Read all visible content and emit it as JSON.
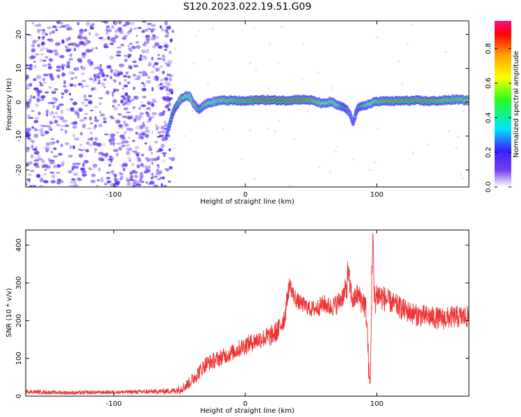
{
  "title": "S120.2023.022.19.51.G09",
  "chart_data": [
    {
      "type": "heatmap",
      "title": "",
      "xlabel": "Height of straight line (km)",
      "ylabel": "Frequency (Hz)",
      "xlim": [
        -167,
        170
      ],
      "ylim": [
        -25,
        24
      ],
      "xticks": [
        -100,
        0,
        100
      ],
      "yticks": [
        -20,
        -10,
        0,
        10,
        20
      ],
      "colorbar": {
        "label": "Normalized spectral amplitude",
        "range": [
          0,
          0.96
        ],
        "ticks": [
          0.0,
          0.2,
          0.4,
          0.6,
          0.8
        ],
        "colors": [
          "#ffffff",
          "#7a3ff0",
          "#3a1fff",
          "#00e5ff",
          "#22ff22",
          "#ffff00",
          "#ff9900",
          "#ff0000",
          "#ff1080"
        ]
      },
      "noise_region": {
        "x_range": [
          -167,
          -55
        ],
        "y_range": [
          -25,
          24
        ],
        "level": 0.15
      },
      "signal_ridge": {
        "x": [
          -60,
          -58,
          -55,
          -52,
          -50,
          -47,
          -45,
          -42,
          -40,
          -37,
          -35,
          -32,
          -30,
          -25,
          -20,
          -10,
          0,
          10,
          20,
          30,
          40,
          50,
          55,
          60,
          65,
          70,
          75,
          78,
          80,
          82,
          85,
          90,
          95,
          100,
          110,
          120,
          130,
          140,
          150,
          160,
          170
        ],
        "frequency": [
          -10,
          -7,
          -3,
          -1,
          0.5,
          1.5,
          2,
          1.5,
          0,
          -1.5,
          -2,
          -1,
          -0.5,
          0,
          0.5,
          0.5,
          0.3,
          0.7,
          0.6,
          0.5,
          0.8,
          0.6,
          0,
          -0.5,
          0.2,
          -1,
          -1.5,
          -2.5,
          -4,
          -6,
          -2,
          -1,
          -0.5,
          0.3,
          0.3,
          0.4,
          0.5,
          0.3,
          0.5,
          0.8,
          0.5
        ],
        "amplitude": [
          0.25,
          0.35,
          0.45,
          0.55,
          0.6,
          0.65,
          0.7,
          0.7,
          0.65,
          0.6,
          0.55,
          0.6,
          0.65,
          0.7,
          0.75,
          0.8,
          0.85,
          0.88,
          0.9,
          0.9,
          0.88,
          0.85,
          0.75,
          0.7,
          0.75,
          0.65,
          0.5,
          0.4,
          0.3,
          0.25,
          0.45,
          0.6,
          0.7,
          0.8,
          0.85,
          0.85,
          0.85,
          0.85,
          0.8,
          0.8,
          0.75
        ]
      }
    },
    {
      "type": "line",
      "title": "",
      "xlabel": "Height of straight line (km)",
      "ylabel": "SNR (10 * v/v)",
      "xlim": [
        -167,
        170
      ],
      "ylim": [
        0,
        440
      ],
      "xticks": [
        -100,
        0,
        100
      ],
      "yticks": [
        0,
        100,
        200,
        300,
        400
      ],
      "series": [
        {
          "color": "#ee3333",
          "x": [
            -167,
            -150,
            -130,
            -110,
            -90,
            -70,
            -55,
            -50,
            -45,
            -40,
            -35,
            -30,
            -20,
            -10,
            0,
            10,
            20,
            25,
            30,
            32,
            34,
            36,
            40,
            45,
            50,
            55,
            60,
            65,
            70,
            73,
            75,
            77,
            78,
            80,
            82,
            85,
            88,
            90,
            92,
            93,
            94,
            95,
            96,
            97,
            98,
            100,
            105,
            110,
            120,
            130,
            140,
            150,
            160,
            170
          ],
          "y": [
            12,
            10,
            9,
            10,
            11,
            12,
            14,
            18,
            28,
            45,
            65,
            85,
            100,
            115,
            135,
            150,
            160,
            175,
            210,
            265,
            300,
            270,
            250,
            240,
            230,
            235,
            245,
            235,
            245,
            260,
            270,
            285,
            330,
            280,
            250,
            270,
            255,
            250,
            220,
            150,
            60,
            25,
            280,
            440,
            250,
            270,
            260,
            250,
            230,
            215,
            210,
            205,
            210,
            210
          ],
          "noise": [
            5,
            5,
            5,
            5,
            5,
            6,
            8,
            12,
            15,
            18,
            20,
            22,
            22,
            22,
            25,
            25,
            28,
            30,
            30,
            25,
            25,
            25,
            22,
            22,
            22,
            25,
            25,
            25,
            28,
            28,
            30,
            40,
            40,
            35,
            30,
            30,
            35,
            35,
            40,
            40,
            30,
            10,
            60,
            20,
            45,
            40,
            35,
            30,
            30,
            30,
            30,
            30,
            30,
            30
          ]
        }
      ]
    }
  ]
}
